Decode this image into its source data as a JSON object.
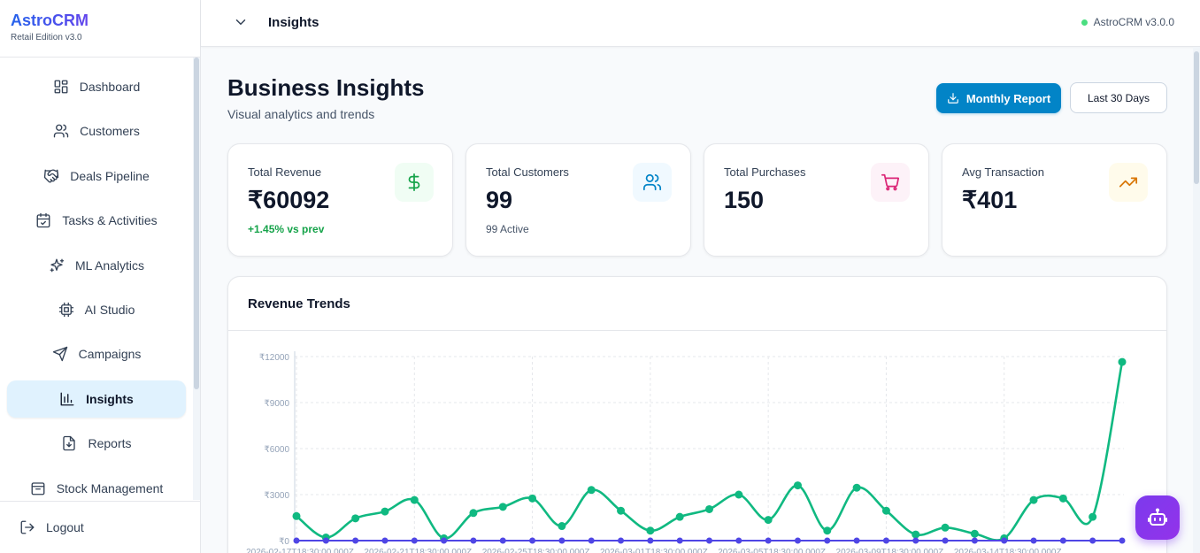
{
  "brand": {
    "name": "AstroCRM",
    "edition": "Retail Edition v3.0"
  },
  "sidebar": {
    "items": [
      {
        "label": "Dashboard",
        "icon": "dashboard-icon"
      },
      {
        "label": "Customers",
        "icon": "users-icon"
      },
      {
        "label": "Deals Pipeline",
        "icon": "handshake-icon"
      },
      {
        "label": "Tasks & Activities",
        "icon": "calendar-check-icon"
      },
      {
        "label": "ML Analytics",
        "icon": "sparkles-icon"
      },
      {
        "label": "AI Studio",
        "icon": "cpu-icon"
      },
      {
        "label": "Campaigns",
        "icon": "send-icon"
      },
      {
        "label": "Insights",
        "icon": "bar-chart-icon",
        "active": true
      },
      {
        "label": "Reports",
        "icon": "file-download-icon"
      },
      {
        "label": "Stock Management",
        "icon": "package-icon"
      }
    ],
    "logout_label": "Logout"
  },
  "topbar": {
    "title": "Insights",
    "version": "AstroCRM v3.0.0"
  },
  "page": {
    "title": "Business Insights",
    "subtitle": "Visual analytics and trends",
    "report_button": "Monthly Report",
    "range_button": "Last 30 Days"
  },
  "stats": [
    {
      "label": "Total Revenue",
      "value": "₹60092",
      "sub": "+1.45% vs prev",
      "icon": "dollar-icon",
      "color": "#16a34a",
      "bg": "#f0fdf4"
    },
    {
      "label": "Total Customers",
      "value": "99",
      "sub": "99 Active",
      "icon": "users-icon",
      "color": "#0284c7",
      "bg": "#f0f9ff"
    },
    {
      "label": "Total Purchases",
      "value": "150",
      "sub": "",
      "icon": "cart-icon",
      "color": "#db2777",
      "bg": "#fdf2f8"
    },
    {
      "label": "Avg Transaction",
      "value": "₹401",
      "sub": "",
      "icon": "trending-up-icon",
      "color": "#d97706",
      "bg": "#fffbeb"
    }
  ],
  "chart_data": {
    "type": "line",
    "title": "Revenue Trends",
    "ylim": [
      0,
      12000
    ],
    "yticks": [
      "₹0",
      "₹3000",
      "₹6000",
      "₹9000",
      "₹12000"
    ],
    "xticks": [
      "2026-02-17T18:30:00.000Z",
      "2026-02-21T18:30:00.000Z",
      "2026-02-25T18:30:00.000Z",
      "2026-03-01T18:30:00.000Z",
      "2026-03-05T18:30:00.000Z",
      "2026-03-09T18:30:00.000Z",
      "2026-03-14T18:30:00.000Z"
    ],
    "grid": true,
    "colors": [
      "#10b981",
      "#4f46e5"
    ],
    "series": [
      {
        "values": [
          1600,
          200,
          1450,
          1900,
          2650,
          150,
          1800,
          2200,
          2750,
          950,
          3300,
          1950,
          650,
          1550,
          2050,
          3000,
          1350,
          3600,
          650,
          3450,
          1950,
          400,
          850,
          450,
          150,
          2650,
          2750,
          1550,
          11650
        ]
      },
      {
        "values": [
          0,
          0,
          0,
          0,
          0,
          0,
          0,
          0,
          0,
          0,
          0,
          0,
          0,
          0,
          0,
          0,
          0,
          0,
          0,
          0,
          0,
          0,
          0,
          0,
          0,
          0,
          0,
          0,
          0
        ]
      }
    ]
  }
}
